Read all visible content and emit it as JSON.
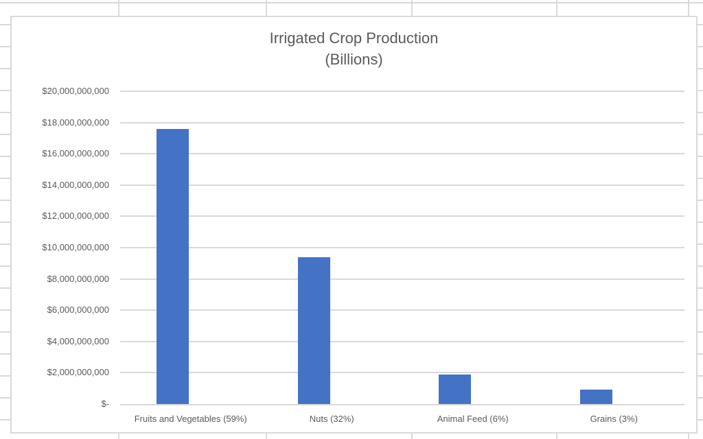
{
  "chart": {
    "title_line1": "Irrigated Crop Production",
    "title_line2": "(Billions)",
    "colors": {
      "bar": "#4472C4",
      "gridline": "#D9D9D9",
      "border": "#D9D9D9",
      "text": "#595959",
      "sheetline": "#D9D9D9"
    }
  },
  "chart_data": {
    "type": "bar",
    "title": "Irrigated Crop Production (Billions)",
    "categories": [
      "Fruits and Vegetables (59%)",
      "Nuts (32%)",
      "Animal Feed (6%)",
      "Grains (3%)"
    ],
    "values": [
      17600000000,
      9400000000,
      1900000000,
      900000000
    ],
    "series_name": "Irrigated Crop Production",
    "xlabel": "",
    "ylabel": "",
    "ylim": [
      0,
      20000000000
    ],
    "ytick_step": 2000000000,
    "ytick_labels": [
      "$-",
      "$2,000,000,000",
      "$4,000,000,000",
      "$6,000,000,000",
      "$8,000,000,000",
      "$10,000,000,000",
      "$12,000,000,000",
      "$14,000,000,000",
      "$16,000,000,000",
      "$18,000,000,000",
      "$20,000,000,000"
    ],
    "grid": true,
    "legend_position": "none"
  }
}
